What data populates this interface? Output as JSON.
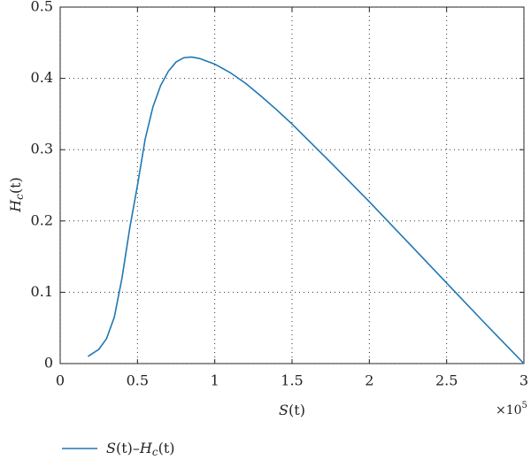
{
  "chart_data": {
    "type": "line",
    "xlabel": [
      "S",
      "(t)"
    ],
    "ylabel": [
      "H",
      "c",
      "(t)"
    ],
    "x_multiplier": [
      "×10",
      "5"
    ],
    "x": [
      0.18,
      0.25,
      0.3,
      0.35,
      0.4,
      0.45,
      0.5,
      0.55,
      0.6,
      0.65,
      0.7,
      0.75,
      0.8,
      0.85,
      0.9,
      1.0,
      1.1,
      1.2,
      1.3,
      1.4,
      1.5,
      1.75,
      2.0,
      2.25,
      2.5,
      2.75,
      3.0
    ],
    "series": [
      {
        "name": [
          "S",
          "(t)–",
          "H",
          "c",
          "(t)"
        ],
        "color": "#1f77b4",
        "values": [
          0.01,
          0.02,
          0.035,
          0.065,
          0.12,
          0.19,
          0.25,
          0.315,
          0.36,
          0.39,
          0.41,
          0.423,
          0.429,
          0.43,
          0.428,
          0.42,
          0.408,
          0.393,
          0.375,
          0.356,
          0.336,
          0.282,
          0.227,
          0.17,
          0.113,
          0.056,
          0.0
        ]
      }
    ],
    "xlim": [
      0,
      3
    ],
    "ylim": [
      0,
      0.5
    ],
    "xticks": [
      0,
      0.5,
      1,
      1.5,
      2,
      2.5,
      3
    ],
    "yticks": [
      0,
      0.1,
      0.2,
      0.3,
      0.4,
      0.5
    ],
    "grid": true
  }
}
